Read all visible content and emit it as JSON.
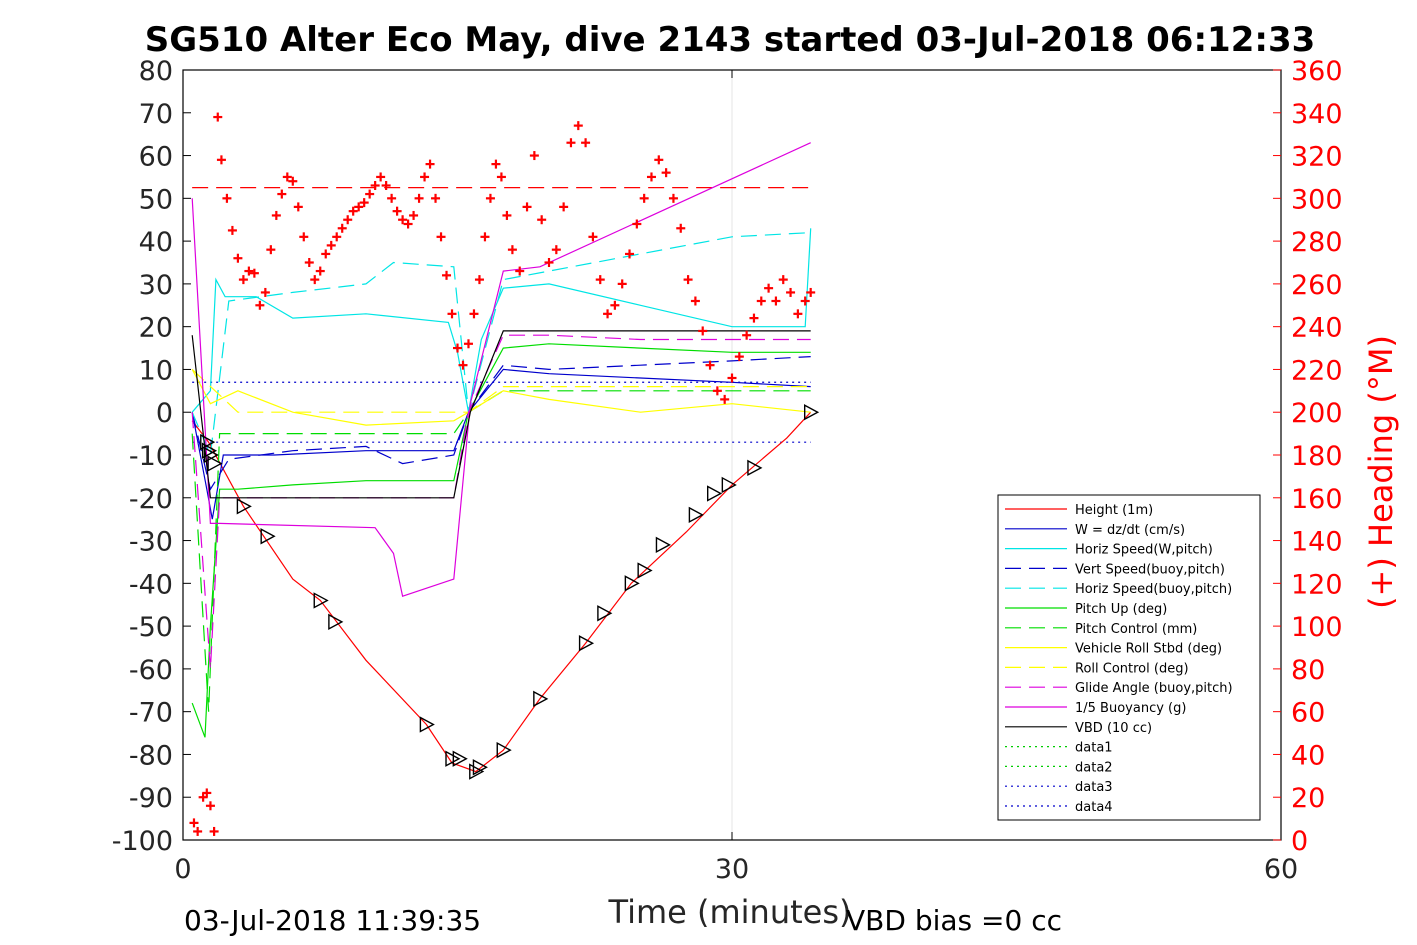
{
  "chart_data": {
    "type": "line",
    "title": "SG510 Alter Eco May, dive 2143 started 03-Jul-2018 06:12:33",
    "xlabel": "Time (minutes)",
    "ylabel_left": "",
    "ylabel_right": "(+) Heading (°M)",
    "xlim": [
      0,
      60
    ],
    "ylim_left": [
      -100,
      80
    ],
    "ylim_right": [
      0,
      360
    ],
    "x_ticks": [
      "0",
      "30",
      "60"
    ],
    "y_ticks_left": [
      "80",
      "70",
      "60",
      "50",
      "40",
      "30",
      "20",
      "10",
      "0",
      "-10",
      "-20",
      "-30",
      "-40",
      "-50",
      "-60",
      "-70",
      "-80",
      "-90",
      "-100"
    ],
    "y_ticks_right": [
      "360",
      "340",
      "320",
      "300",
      "280",
      "260",
      "240",
      "220",
      "200",
      "180",
      "160",
      "140",
      "120",
      "100",
      "80",
      "60",
      "40",
      "20",
      "0"
    ],
    "grid": "x-at-30",
    "legend_position": "bottom-right",
    "footer_left": "03-Jul-2018 11:39:35",
    "footer_right": "VBD bias =0 cc",
    "series": [
      {
        "name": "Height (1m)",
        "color": "#ff0000",
        "style": "solid",
        "x": [
          0.5,
          1.4,
          3.3,
          6.0,
          7.5,
          10.0,
          13.3,
          14.7,
          16.0,
          17.5,
          19.5,
          22.0,
          24.5,
          27.5,
          30.0,
          33.0,
          34.3
        ],
        "y": [
          -2,
          -7,
          -22,
          -39,
          -44,
          -58,
          -73,
          -82,
          -84,
          -79,
          -67,
          -54,
          -40,
          -28,
          -17,
          -6,
          0
        ]
      },
      {
        "name": "W = dz/dt (cm/s)",
        "color": "#0000cc",
        "style": "solid",
        "x": [
          0.5,
          1.3,
          1.6,
          2.2,
          5,
          10,
          14.8,
          15.6,
          17.5,
          20,
          25,
          30,
          34.3
        ],
        "y": [
          0,
          -18,
          -25,
          -10,
          -10,
          -9,
          -9,
          0,
          10,
          9,
          8,
          7,
          6
        ]
      },
      {
        "name": "Horiz Speed(W,pitch)",
        "color": "#00e5e5",
        "style": "solid",
        "x": [
          0.5,
          1.5,
          1.8,
          2.3,
          4,
          6,
          10,
          14.5,
          15.0,
          15.6,
          16.3,
          17.5,
          20,
          25,
          30,
          34.0,
          34.3
        ],
        "y": [
          0,
          5,
          31,
          27,
          27,
          22,
          23,
          21,
          14,
          0,
          17,
          29,
          30,
          25,
          20,
          20,
          43
        ]
      },
      {
        "name": "Vert Speed(buoy,pitch)",
        "color": "#0000cc",
        "style": "dashed",
        "x": [
          0.5,
          1.5,
          2.5,
          6,
          10,
          12,
          14.8,
          15.6,
          17.5,
          20,
          25,
          30,
          34.3
        ],
        "y": [
          0,
          -18,
          -11,
          -9,
          -8,
          -12,
          -10,
          0,
          11,
          10,
          11,
          12,
          13
        ]
      },
      {
        "name": "Horiz Speed(buoy,pitch)",
        "color": "#00e5e5",
        "style": "dashed",
        "x": [
          0.5,
          1.5,
          2.5,
          6,
          10,
          11.5,
          14.8,
          15.6,
          17.5,
          20,
          25,
          30,
          34.3
        ],
        "y": [
          0,
          -10,
          26,
          28,
          30,
          35,
          34,
          0,
          31,
          33,
          37,
          41,
          42
        ]
      },
      {
        "name": "Pitch Up (deg)",
        "color": "#00dd00",
        "style": "solid",
        "x": [
          0.5,
          1.2,
          1.5,
          2.0,
          3,
          6,
          10,
          14.8,
          15.6,
          17.5,
          20,
          25,
          30,
          34.3
        ],
        "y": [
          -68,
          -76,
          -50,
          -18,
          -18,
          -17,
          -16,
          -16,
          0,
          15,
          16,
          15,
          14,
          14
        ]
      },
      {
        "name": "Pitch Control (mm)",
        "color": "#00dd00",
        "style": "dashed",
        "x": [
          0.5,
          1.4,
          2.0,
          14.8,
          15.6,
          17.5,
          34.3
        ],
        "y": [
          -5,
          -70,
          -5,
          -5,
          0,
          5,
          5
        ]
      },
      {
        "name": "Vehicle Roll Stbd (deg)",
        "color": "#ffff00",
        "style": "solid",
        "x": [
          0.5,
          1.5,
          3,
          6,
          10,
          14.8,
          15.6,
          17.5,
          20,
          25,
          30,
          34.3
        ],
        "y": [
          10,
          2,
          5,
          0,
          -3,
          -2,
          0,
          5,
          3,
          0,
          2,
          0
        ]
      },
      {
        "name": "Roll Control (deg)",
        "color": "#ffff00",
        "style": "dashed",
        "x": [
          0.5,
          3,
          15.6,
          17.5,
          34.3
        ],
        "y": [
          10,
          0,
          0,
          6,
          6
        ]
      },
      {
        "name": "Glide Angle (buoy,pitch)",
        "color": "#dd00dd",
        "style": "dashed",
        "x": [
          0.5,
          1.5,
          2.0,
          6,
          10,
          14.8,
          15.6,
          17.5,
          20,
          25,
          30,
          34.3
        ],
        "y": [
          0,
          -60,
          -20,
          -20,
          -20,
          -20,
          0,
          18,
          18,
          17,
          17,
          17
        ]
      },
      {
        "name": "1/5 Buoyancy (g)",
        "color": "#dd00dd",
        "style": "solid",
        "x": [
          0.5,
          1.5,
          2.0,
          10.5,
          11.5,
          12.0,
          14.8,
          15.7,
          17.5,
          19.5,
          34.3
        ],
        "y": [
          50,
          -26,
          -26,
          -27,
          -33,
          -43,
          -39,
          2,
          33,
          34,
          63
        ]
      },
      {
        "name": "VBD (10 cc)",
        "color": "#000000",
        "style": "solid",
        "x": [
          0.5,
          1.5,
          2.0,
          14.8,
          15.7,
          17.5,
          34.3
        ],
        "y": [
          18,
          -20,
          -20,
          -20,
          0,
          19,
          19
        ]
      },
      {
        "name": "data1",
        "color": "#00cc00",
        "style": "dotted",
        "x": [],
        "y": []
      },
      {
        "name": "data2",
        "color": "#00cc00",
        "style": "dotted",
        "x": [],
        "y": []
      },
      {
        "name": "data3",
        "color": "#0000cc",
        "style": "dotted",
        "x": [],
        "y": []
      },
      {
        "name": "data4",
        "color": "#0000cc",
        "style": "dotted",
        "x": [],
        "y": []
      }
    ],
    "reference_lines": [
      {
        "axis": "right",
        "y": 305,
        "color": "#ff0000",
        "style": "dashed",
        "x": [
          0.5,
          34.3
        ]
      },
      {
        "axis": "left",
        "y": 7,
        "color": "#0000cc",
        "style": "dotted",
        "x": [
          0.5,
          34.3
        ]
      },
      {
        "axis": "left",
        "y": -7,
        "color": "#0000cc",
        "style": "dotted",
        "x": [
          0.5,
          34.3
        ]
      }
    ],
    "heading_points": {
      "name": "(+) Heading (°M)",
      "color": "#ff0000",
      "marker": "+",
      "axis": "right",
      "x": [
        0.6,
        0.8,
        1.1,
        1.3,
        1.5,
        1.7,
        1.9,
        2.1,
        2.4,
        2.7,
        3.0,
        3.3,
        3.6,
        3.9,
        4.2,
        4.5,
        4.8,
        5.1,
        5.4,
        5.7,
        6.0,
        6.3,
        6.6,
        6.9,
        7.2,
        7.5,
        7.8,
        8.1,
        8.4,
        8.7,
        9.0,
        9.3,
        9.6,
        9.9,
        10.2,
        10.5,
        10.8,
        11.1,
        11.4,
        11.7,
        12.0,
        12.3,
        12.6,
        12.9,
        13.2,
        13.5,
        13.8,
        14.1,
        14.4,
        14.7,
        15.0,
        15.3,
        15.6,
        15.9,
        16.2,
        16.5,
        16.8,
        17.1,
        17.4,
        17.7,
        18.0,
        18.4,
        18.8,
        19.2,
        19.6,
        20.0,
        20.4,
        20.8,
        21.2,
        21.6,
        22.0,
        22.4,
        22.8,
        23.2,
        23.6,
        24.0,
        24.4,
        24.8,
        25.2,
        25.6,
        26.0,
        26.4,
        26.8,
        27.2,
        27.6,
        28.0,
        28.4,
        28.8,
        29.2,
        29.6,
        30.0,
        30.4,
        30.8,
        31.2,
        31.6,
        32.0,
        32.4,
        32.8,
        33.2,
        33.6,
        34.0,
        34.3
      ],
      "y": [
        8,
        4,
        20,
        22,
        16,
        4,
        338,
        318,
        300,
        285,
        272,
        262,
        266,
        265,
        250,
        256,
        276,
        292,
        302,
        310,
        308,
        296,
        282,
        270,
        262,
        266,
        274,
        278,
        282,
        286,
        290,
        294,
        296,
        298,
        302,
        306,
        310,
        306,
        300,
        294,
        290,
        288,
        292,
        300,
        310,
        316,
        300,
        282,
        264,
        246,
        230,
        222,
        232,
        246,
        262,
        282,
        300,
        316,
        310,
        292,
        276,
        266,
        296,
        320,
        290,
        270,
        276,
        296,
        326,
        334,
        326,
        282,
        262,
        246,
        250,
        260,
        274,
        288,
        300,
        310,
        318,
        312,
        300,
        286,
        262,
        252,
        238,
        222,
        210,
        206,
        216,
        226,
        236,
        244,
        252,
        258,
        252,
        262,
        256,
        246,
        252,
        256
      ]
    },
    "markers_triangle": {
      "color": "#000000",
      "marker": "triangle",
      "x": [
        1.3,
        1.4,
        1.5,
        1.7,
        3.3,
        4.6,
        7.5,
        8.3,
        13.3,
        14.7,
        15.1,
        16.0,
        16.2,
        17.5,
        19.5,
        22.0,
        23.0,
        24.5,
        25.2,
        26.2,
        28.0,
        29.0,
        29.8,
        31.2,
        34.3
      ],
      "y": [
        -7,
        -9,
        -10,
        -12,
        -22,
        -29,
        -44,
        -49,
        -73,
        -81,
        -81,
        -84,
        -83,
        -79,
        -67,
        -54,
        -47,
        -40,
        -37,
        -31,
        -24,
        -19,
        -17,
        -13,
        0
      ]
    }
  }
}
